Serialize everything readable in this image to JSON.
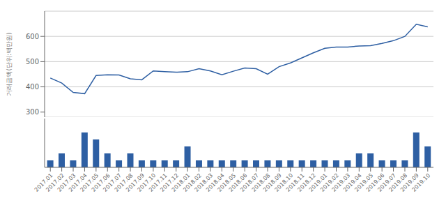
{
  "chart_data": [
    {
      "type": "line",
      "categories": [
        "2017.01",
        "2017.02",
        "2017.03",
        "2017.04",
        "2017.05",
        "2017.06",
        "2017.07",
        "2017.08",
        "2017.09",
        "2017.10",
        "2017.11",
        "2017.12",
        "2018.01",
        "2018.02",
        "2018.03",
        "2018.04",
        "2018.05",
        "2018.06",
        "2018.07",
        "2018.08",
        "2018.09",
        "2018.10",
        "2018.11",
        "2018.12",
        "2019.01",
        "2019.02",
        "2019.03",
        "2019.04",
        "2019.05",
        "2019.06",
        "2019.07",
        "2019.08",
        "2019.09",
        "2019.10"
      ],
      "values": [
        435,
        415,
        378,
        373,
        445,
        448,
        447,
        432,
        428,
        463,
        460,
        458,
        460,
        472,
        463,
        448,
        462,
        475,
        472,
        450,
        480,
        495,
        515,
        535,
        553,
        558,
        558,
        562,
        563,
        572,
        583,
        600,
        648,
        638
      ],
      "color": "#2E5FA3",
      "ylabel": "거래금액(단위:백만원)",
      "ylim": [
        280,
        700
      ],
      "yticks": [
        300,
        400,
        500,
        600
      ],
      "grid": true,
      "tick_labels": "y"
    },
    {
      "type": "bar",
      "categories": [
        "2017.01",
        "2017.02",
        "2017.03",
        "2017.04",
        "2017.05",
        "2017.06",
        "2017.07",
        "2017.08",
        "2017.09",
        "2017.10",
        "2017.11",
        "2017.12",
        "2018.01",
        "2018.02",
        "2018.03",
        "2018.04",
        "2018.05",
        "2018.06",
        "2018.07",
        "2018.08",
        "2018.09",
        "2018.10",
        "2018.11",
        "2018.12",
        "2019.01",
        "2019.02",
        "2019.03",
        "2019.04",
        "2019.05",
        "2019.06",
        "2019.07",
        "2019.08",
        "2019.09",
        "2019.10"
      ],
      "values": [
        1,
        2,
        1,
        5,
        4,
        2,
        1,
        2,
        1,
        1,
        1,
        1,
        3,
        1,
        1,
        1,
        1,
        1,
        1,
        1,
        1,
        1,
        1,
        1,
        1,
        1,
        1,
        2,
        2,
        1,
        1,
        1,
        5,
        3
      ],
      "color": "#2E5FA3",
      "ylim": [
        0,
        7
      ],
      "grid": false,
      "tick_labels": "x"
    }
  ]
}
